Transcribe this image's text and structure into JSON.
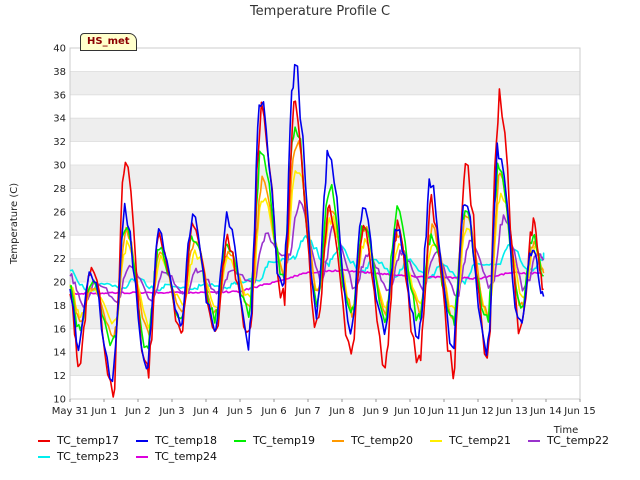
{
  "chart_data": {
    "type": "line",
    "title": "Temperature Profile C",
    "badge": "HS_met",
    "xlabel": "Time",
    "ylabel": "Temperature (C)",
    "ylim": [
      10,
      40
    ],
    "yticks": [
      10,
      12,
      14,
      16,
      18,
      20,
      22,
      24,
      26,
      28,
      30,
      32,
      34,
      36,
      38,
      40
    ],
    "xticks": [
      "May 31",
      "Jun 1",
      "Jun 2",
      "Jun 3",
      "Jun 4",
      "Jun 5",
      "Jun 6",
      "Jun 7",
      "Jun 8",
      "Jun 9",
      "Jun 10",
      "Jun 11",
      "Jun 12",
      "Jun 13",
      "Jun 14",
      "Jun 15"
    ],
    "x_start": "2023-05-31",
    "xlim": [
      0,
      15
    ],
    "grid": "horizontal bands",
    "legend_position": "bottom",
    "daily_x": [
      0.5,
      1.5,
      2.5,
      3.5,
      4.5,
      5.5,
      6.5,
      7.5,
      8.5,
      9.5,
      10.5,
      11.5,
      12.5,
      13.5
    ],
    "series": [
      {
        "name": "TC_temp17",
        "color": "#ee0000",
        "offset": 0.0,
        "max": [
          21.5,
          30.2,
          24.0,
          25.0,
          23.5,
          35.0,
          35.0,
          26.5,
          25.0,
          24.5,
          26.5,
          30.0,
          35.5,
          25.0
        ],
        "min": [
          13.0,
          11.2,
          12.2,
          16.0,
          15.5,
          15.0,
          18.5,
          16.5,
          14.2,
          13.3,
          13.0,
          12.8,
          13.5,
          16.0,
          11.8
        ]
      },
      {
        "name": "TC_temp18",
        "color": "#0000ee",
        "offset": -0.02,
        "max": [
          21.0,
          26.0,
          24.0,
          25.5,
          25.5,
          36.0,
          38.5,
          31.0,
          26.0,
          24.5,
          28.5,
          26.5,
          31.5,
          23.0
        ],
        "min": [
          14.5,
          11.5,
          13.0,
          16.5,
          16.0,
          15.5,
          19.0,
          17.0,
          15.5,
          16.0,
          15.5,
          14.5,
          14.5,
          16.5,
          12.5
        ]
      },
      {
        "name": "TC_temp19",
        "color": "#00ee00",
        "offset": -0.01,
        "max": [
          20.0,
          24.8,
          23.0,
          24.0,
          23.0,
          31.0,
          33.5,
          28.0,
          25.0,
          26.0,
          24.0,
          26.0,
          30.2,
          24.0
        ],
        "min": [
          16.0,
          14.5,
          14.5,
          17.0,
          17.0,
          17.5,
          20.5,
          18.5,
          17.0,
          17.0,
          17.0,
          16.5,
          16.5,
          17.5,
          15.0
        ]
      },
      {
        "name": "TC_temp20",
        "color": "#ff9900",
        "offset": 0.02,
        "max": [
          19.5,
          24.5,
          22.5,
          23.5,
          22.5,
          28.5,
          32.0,
          26.5,
          24.5,
          24.0,
          24.5,
          25.5,
          29.5,
          23.5
        ],
        "min": [
          16.5,
          15.5,
          15.5,
          17.5,
          17.5,
          18.0,
          20.5,
          19.0,
          17.5,
          17.5,
          17.5,
          17.0,
          17.0,
          18.0,
          16.0
        ]
      },
      {
        "name": "TC_temp21",
        "color": "#ffee00",
        "offset": 0.04,
        "max": [
          19.5,
          23.0,
          22.0,
          22.5,
          22.0,
          27.0,
          30.0,
          25.5,
          23.5,
          23.0,
          23.5,
          24.5,
          27.5,
          23.0
        ],
        "min": [
          17.0,
          16.5,
          16.5,
          18.0,
          18.0,
          18.5,
          21.0,
          19.5,
          18.0,
          18.0,
          18.0,
          17.5,
          17.5,
          18.5,
          17.0
        ]
      },
      {
        "name": "TC_temp22",
        "color": "#9933cc",
        "offset": 0.12,
        "max": [
          20.0,
          21.5,
          21.0,
          21.0,
          21.0,
          24.0,
          26.5,
          24.5,
          22.5,
          22.5,
          22.5,
          23.5,
          25.5,
          22.5
        ],
        "min": [
          18.0,
          18.5,
          18.5,
          19.0,
          19.0,
          20.0,
          22.0,
          20.0,
          19.5,
          19.5,
          19.5,
          19.0,
          19.5,
          19.5,
          19.5
        ]
      },
      {
        "name": "TC_temp23",
        "color": "#00eeee",
        "offset": 0.3,
        "max": [
          20.0,
          20.3,
          19.8,
          19.8,
          20.0,
          21.8,
          23.8,
          23.0,
          22.0,
          21.8,
          21.5,
          21.5,
          23.0,
          22.0
        ],
        "min": [
          19.0,
          19.5,
          19.3,
          19.3,
          19.5,
          20.3,
          22.0,
          21.5,
          20.8,
          20.5,
          20.3,
          20.0,
          21.5,
          21.0,
          20.8
        ]
      },
      {
        "name": "TC_temp24",
        "color": "#dd00dd",
        "offset": 0.0,
        "max": [],
        "min": [],
        "trend_x": [
          0.0,
          2.0,
          4.0,
          5.0,
          6.0,
          7.0,
          8.0,
          10.0,
          12.0,
          13.0,
          14.0
        ],
        "trend_y": [
          19.0,
          19.1,
          19.1,
          19.2,
          20.0,
          20.8,
          21.0,
          20.5,
          20.3,
          20.8,
          20.7
        ]
      }
    ]
  }
}
